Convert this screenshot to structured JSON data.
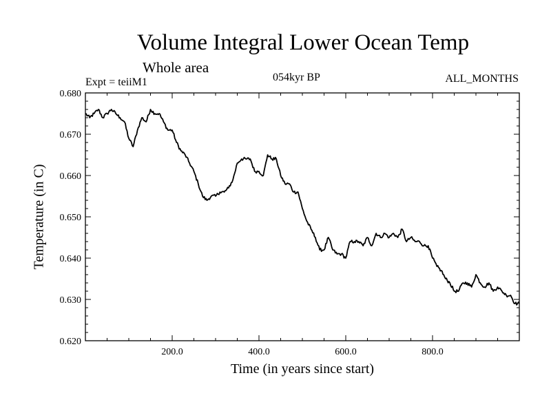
{
  "header": {
    "expt": "Expt = teiiM1",
    "period": "054kyr BP",
    "months": "ALL_MONTHS"
  },
  "chart_data": {
    "type": "line",
    "title": "Volume Integral Lower Ocean Temp",
    "subtitle": "Whole area",
    "xlabel": "Time (in years since start)",
    "ylabel": "Temperature (in C)",
    "xlim": [
      0,
      1000
    ],
    "ylim": [
      0.62,
      0.68
    ],
    "xticks": [
      "200.0",
      "400.0",
      "600.0",
      "800.0"
    ],
    "yticks": [
      "0.620",
      "0.630",
      "0.640",
      "0.650",
      "0.660",
      "0.670",
      "0.680"
    ],
    "grid": false,
    "line_color": "#000000",
    "series": [
      {
        "x": [
          0,
          10,
          20,
          30,
          40,
          50,
          60,
          70,
          80,
          90,
          100,
          110,
          120,
          130,
          140,
          150,
          160,
          170,
          180,
          190,
          200,
          210,
          220,
          230,
          240,
          250,
          260,
          270,
          280,
          290,
          300,
          310,
          320,
          330,
          340,
          350,
          360,
          370,
          380,
          390,
          400,
          410,
          420,
          430,
          440,
          450,
          460,
          470,
          480,
          490,
          500,
          510,
          520,
          530,
          540,
          550,
          560,
          570,
          580,
          590,
          600,
          610,
          620,
          630,
          640,
          650,
          660,
          670,
          680,
          690,
          700,
          710,
          720,
          730,
          740,
          750,
          760,
          770,
          780,
          790,
          800,
          810,
          820,
          830,
          840,
          850,
          860,
          870,
          880,
          890,
          900,
          910,
          920,
          930,
          940,
          950,
          960,
          970,
          980,
          990,
          1000
        ],
        "values": [
          0.675,
          0.674,
          0.675,
          0.676,
          0.674,
          0.675,
          0.676,
          0.675,
          0.674,
          0.673,
          0.669,
          0.667,
          0.671,
          0.674,
          0.673,
          0.676,
          0.675,
          0.675,
          0.673,
          0.671,
          0.671,
          0.668,
          0.666,
          0.665,
          0.663,
          0.661,
          0.658,
          0.655,
          0.654,
          0.655,
          0.655,
          0.656,
          0.656,
          0.657,
          0.659,
          0.663,
          0.664,
          0.664,
          0.664,
          0.661,
          0.661,
          0.66,
          0.665,
          0.664,
          0.664,
          0.66,
          0.658,
          0.658,
          0.656,
          0.656,
          0.652,
          0.649,
          0.647,
          0.645,
          0.642,
          0.642,
          0.645,
          0.642,
          0.641,
          0.641,
          0.64,
          0.644,
          0.644,
          0.644,
          0.643,
          0.645,
          0.643,
          0.646,
          0.645,
          0.646,
          0.645,
          0.646,
          0.645,
          0.647,
          0.644,
          0.645,
          0.644,
          0.644,
          0.643,
          0.643,
          0.64,
          0.638,
          0.637,
          0.635,
          0.634,
          0.632,
          0.632,
          0.634,
          0.634,
          0.633,
          0.636,
          0.634,
          0.633,
          0.634,
          0.632,
          0.633,
          0.632,
          0.631,
          0.631,
          0.629,
          0.629
        ]
      }
    ]
  }
}
